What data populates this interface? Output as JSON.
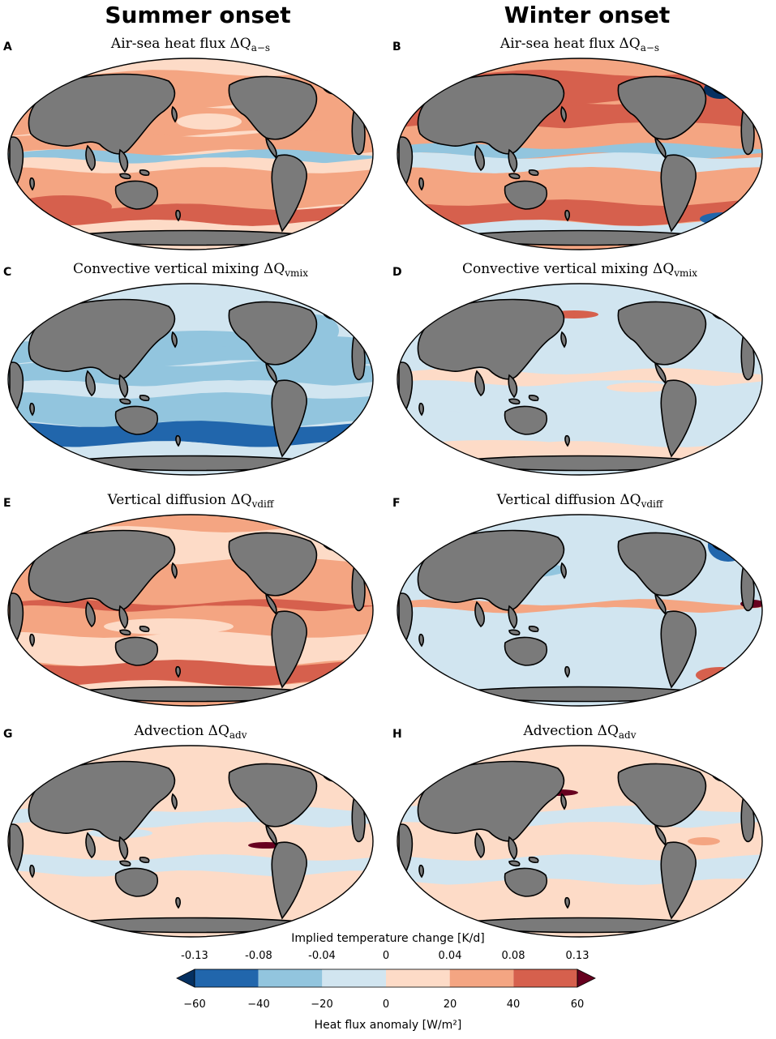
{
  "columns": [
    {
      "heading": "Summer onset"
    },
    {
      "heading": "Winter onset"
    }
  ],
  "panels": [
    {
      "letter": "A",
      "title": "Air-sea heat flux ΔQ",
      "sub": "a−s",
      "pattern": "airsea_summer"
    },
    {
      "letter": "B",
      "title": "Air-sea heat flux ΔQ",
      "sub": "a−s",
      "pattern": "airsea_winter"
    },
    {
      "letter": "C",
      "title": "Convective vertical mixing ΔQ",
      "sub": "vmix",
      "pattern": "vmix_summer"
    },
    {
      "letter": "D",
      "title": "Convective vertical mixing ΔQ",
      "sub": "vmix",
      "pattern": "vmix_winter"
    },
    {
      "letter": "E",
      "title": "Vertical diffusion ΔQ",
      "sub": "vdiff",
      "pattern": "vdiff_summer"
    },
    {
      "letter": "F",
      "title": "Vertical diffusion ΔQ",
      "sub": "vdiff",
      "pattern": "vdiff_winter"
    },
    {
      "letter": "G",
      "title": "Advection ΔQ",
      "sub": "adv",
      "pattern": "adv_summer"
    },
    {
      "letter": "H",
      "title": "Advection ΔQ",
      "sub": "adv",
      "pattern": "adv_winter"
    }
  ],
  "colorbar": {
    "top_label": "Implied temperature change [K/d]",
    "top_ticks": [
      "-0.13",
      "-0.08",
      "-0.04",
      "0",
      "0.04",
      "0.08",
      "0.13"
    ],
    "bottom_label": "Heat flux anomaly [W/m²]",
    "bottom_ticks": [
      "−60",
      "−40",
      "−20",
      "0",
      "20",
      "40",
      "60"
    ],
    "colors": [
      "#2166ac",
      "#92c5de",
      "#d1e5f0",
      "#fddbc7",
      "#f4a582",
      "#d6604d"
    ],
    "under_color": "#053061",
    "over_color": "#67001f"
  },
  "land_color": "#7a7a7a"
}
